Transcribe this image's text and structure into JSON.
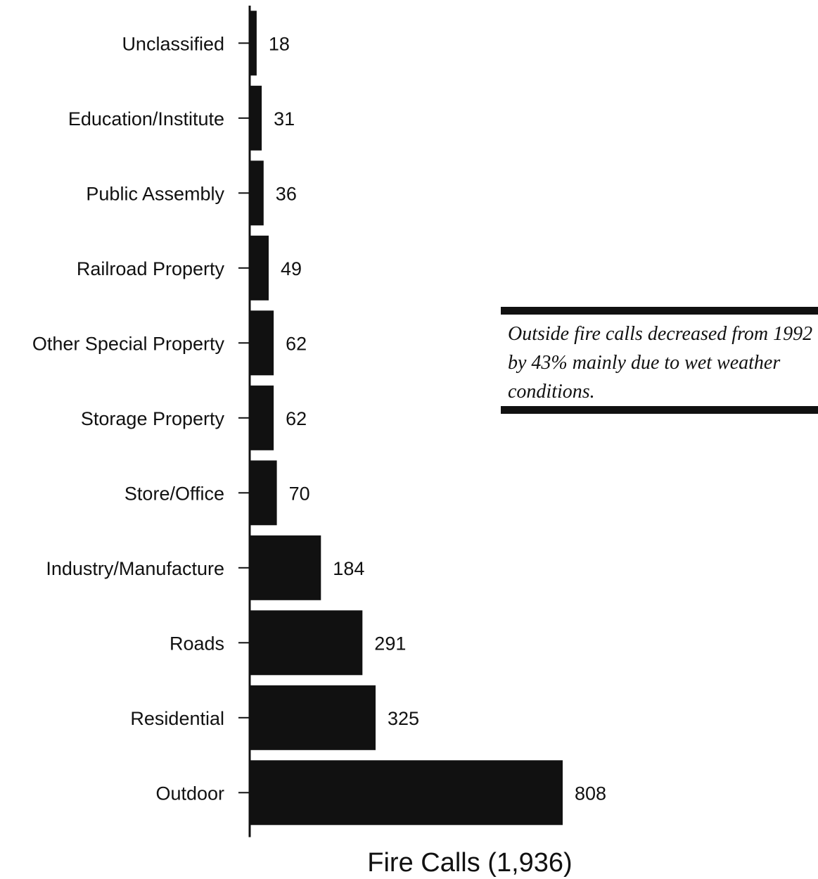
{
  "chart_data": {
    "type": "bar",
    "orientation": "horizontal",
    "categories": [
      "Unclassified",
      "Education/Institute",
      "Public Assembly",
      "Railroad Property",
      "Other Special Property",
      "Storage Property",
      "Store/Office",
      "Industry/Manufacture",
      "Roads",
      "Residential",
      "Outdoor"
    ],
    "values": [
      18,
      31,
      36,
      49,
      62,
      62,
      70,
      184,
      291,
      325,
      808
    ],
    "data_labels": [
      "18",
      "31",
      "36",
      "49",
      "62",
      "62",
      "70",
      "184",
      "291",
      "325",
      "808"
    ],
    "xlabel": "Fire Calls (1,936)",
    "ylabel": "",
    "xlim": [
      0,
      808
    ],
    "grid": false,
    "legend": "none",
    "bar_color": "#111111"
  },
  "annotation": {
    "text": "Outside fire calls decreased from 1992 by 43% mainly due to wet weather conditions."
  }
}
